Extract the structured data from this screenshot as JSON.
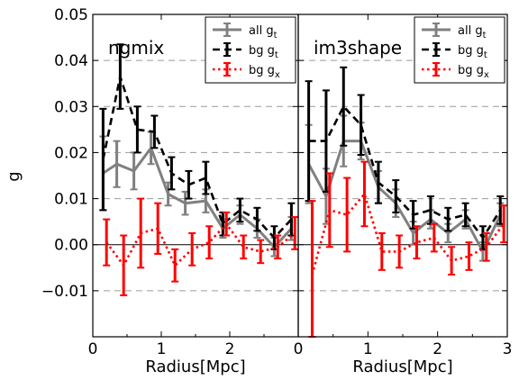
{
  "figure": {
    "ylabel": "g",
    "xlabel": "Radius[Mpc]"
  },
  "chart_data": [
    {
      "type": "line",
      "title": "ngmix",
      "xlabel": "Radius[Mpc]",
      "ylabel": "g",
      "xlim": [
        0,
        3
      ],
      "ylim": [
        -0.02,
        0.05
      ],
      "xticks": [
        0,
        1,
        2,
        3
      ],
      "xtick_labels": [
        "0",
        "1",
        "2",
        ""
      ],
      "yticks": [
        -0.01,
        0.0,
        0.01,
        0.02,
        0.03,
        0.04,
        0.05
      ],
      "ytick_labels": [
        "−0.01",
        "0.00",
        "0.01",
        "0.02",
        "0.03",
        "0.04",
        "0.05"
      ],
      "grid": "horizontal-dashed",
      "legend": "top-right",
      "series": [
        {
          "name": "all g",
          "subscript": "t",
          "color": "#808080",
          "linestyle": "solid",
          "x": [
            0.15,
            0.35,
            0.6,
            0.85,
            1.1,
            1.35,
            1.65,
            1.9,
            2.15,
            2.4,
            2.65,
            2.9
          ],
          "y": [
            0.0155,
            0.0175,
            0.016,
            0.021,
            0.011,
            0.009,
            0.0095,
            0.0035,
            0.0065,
            0.0035,
            -0.0005,
            0.0035
          ],
          "err": [
            0.008,
            0.005,
            0.004,
            0.0035,
            0.0025,
            0.0025,
            0.0025,
            0.002,
            0.002,
            0.002,
            0.002,
            0.0025
          ]
        },
        {
          "name": "bg g",
          "subscript": "t",
          "color": "#000000",
          "linestyle": "dashed",
          "x": [
            0.15,
            0.4,
            0.65,
            0.9,
            1.15,
            1.4,
            1.65,
            1.9,
            2.15,
            2.4,
            2.65,
            2.9
          ],
          "y": [
            0.0185,
            0.0365,
            0.025,
            0.0245,
            0.0155,
            0.013,
            0.0145,
            0.0045,
            0.0075,
            0.0055,
            0.0015,
            0.0055
          ],
          "err": [
            0.011,
            0.007,
            0.005,
            0.0035,
            0.0035,
            0.003,
            0.0035,
            0.0025,
            0.0025,
            0.0025,
            0.0025,
            0.0035
          ]
        },
        {
          "name": "bg g",
          "subscript": "x",
          "color": "#ff0000",
          "linestyle": "dotted",
          "x": [
            0.2,
            0.45,
            0.7,
            0.95,
            1.2,
            1.45,
            1.7,
            1.95,
            2.2,
            2.45,
            2.7,
            2.95
          ],
          "y": [
            0.0005,
            -0.0045,
            0.0025,
            0.0035,
            -0.0045,
            -0.001,
            0.0005,
            0.0045,
            -0.0005,
            -0.0015,
            -0.0005,
            0.0025
          ],
          "err": [
            0.005,
            0.0065,
            0.0075,
            0.0055,
            0.0035,
            0.0035,
            0.0035,
            0.0025,
            0.0025,
            0.0025,
            0.0025,
            0.0035
          ]
        }
      ]
    },
    {
      "type": "line",
      "title": "im3shape",
      "xlabel": "Radius[Mpc]",
      "xlim": [
        0,
        3
      ],
      "ylim": [
        -0.02,
        0.05
      ],
      "xticks": [
        0,
        1,
        2,
        3
      ],
      "xtick_labels": [
        "0",
        "1",
        "2",
        "3"
      ],
      "grid": "horizontal-dashed",
      "legend": "top-right",
      "series": [
        {
          "name": "all g",
          "subscript": "t",
          "color": "#808080",
          "linestyle": "solid",
          "x": [
            0.15,
            0.4,
            0.65,
            0.9,
            1.15,
            1.4,
            1.65,
            1.9,
            2.15,
            2.4,
            2.65,
            2.9
          ],
          "y": [
            0.0175,
            0.0105,
            0.0225,
            0.0225,
            0.0125,
            0.009,
            0.0025,
            0.0055,
            0.0025,
            0.0055,
            -0.0015,
            0.0065
          ],
          "err": [
            0.0085,
            0.006,
            0.0055,
            0.004,
            0.0035,
            0.003,
            0.0025,
            0.002,
            0.002,
            0.002,
            0.002,
            0.0025
          ]
        },
        {
          "name": "bg g",
          "subscript": "t",
          "color": "#000000",
          "linestyle": "dashed",
          "x": [
            0.15,
            0.4,
            0.65,
            0.9,
            1.15,
            1.4,
            1.65,
            1.9,
            2.15,
            2.4,
            2.65,
            2.9
          ],
          "y": [
            0.0225,
            0.0225,
            0.03,
            0.026,
            0.0135,
            0.0105,
            0.0065,
            0.0075,
            0.0055,
            0.0065,
            0.0015,
            0.0075
          ],
          "err": [
            0.013,
            0.011,
            0.0085,
            0.0065,
            0.0045,
            0.0035,
            0.003,
            0.003,
            0.0025,
            0.0025,
            0.0025,
            0.003
          ]
        },
        {
          "name": "bg g",
          "subscript": "x",
          "color": "#ff0000",
          "linestyle": "dotted",
          "x": [
            0.2,
            0.45,
            0.7,
            0.95,
            1.2,
            1.45,
            1.7,
            1.95,
            2.2,
            2.45,
            2.7,
            2.95
          ],
          "y": [
            -0.0065,
            0.0075,
            0.0065,
            0.011,
            -0.0015,
            -0.0015,
            0.0005,
            0.0015,
            -0.0035,
            -0.0025,
            -0.0005,
            0.0045
          ],
          "err": [
            0.016,
            0.008,
            0.008,
            0.007,
            0.004,
            0.0035,
            0.0035,
            0.003,
            0.003,
            0.003,
            0.003,
            0.004
          ]
        }
      ]
    }
  ]
}
